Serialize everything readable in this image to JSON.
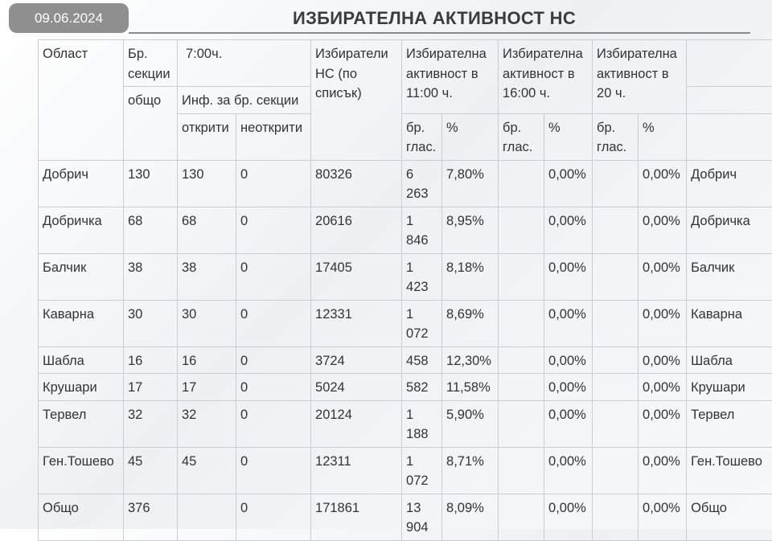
{
  "date": "09.06.2024",
  "title": "ИЗБИРАТЕЛНА АКТИВНОСТ НС",
  "headers": {
    "region": "Област",
    "sections": "Бр. секции",
    "time_7": "7:00ч.",
    "voters": "Избиратели НС (по списък)",
    "turnout_11": "Избирателна активност в 11:00 ч.",
    "turnout_16": "Избирателна активност в 16:00 ч.",
    "turnout_20": "Избирателна активност в 20 ч.",
    "total": "общо",
    "info_sections": "Инф. за бр. секции",
    "opened": "открити",
    "not_opened": "неоткрити",
    "votes_count": "бр. глас.",
    "percent": "%"
  },
  "rows": [
    {
      "region": "Добрич",
      "total": "130",
      "opened": "130",
      "not_opened": "0",
      "voters": "80326",
      "votes_11": "6 263",
      "pct_11": "7,80%",
      "votes_16": "",
      "pct_16": "0,00%",
      "votes_20": "",
      "pct_20": "0,00%",
      "region_right": "Добрич"
    },
    {
      "region": "Добричка",
      "total": "68",
      "opened": "68",
      "not_opened": "0",
      "voters": "20616",
      "votes_11": "1 846",
      "pct_11": "8,95%",
      "votes_16": "",
      "pct_16": "0,00%",
      "votes_20": "",
      "pct_20": "0,00%",
      "region_right": "Добричка"
    },
    {
      "region": "Балчик",
      "total": "38",
      "opened": "38",
      "not_opened": "0",
      "voters": "17405",
      "votes_11": "1 423",
      "pct_11": "8,18%",
      "votes_16": "",
      "pct_16": "0,00%",
      "votes_20": "",
      "pct_20": "0,00%",
      "region_right": "Балчик"
    },
    {
      "region": "Каварна",
      "total": "30",
      "opened": "30",
      "not_opened": "0",
      "voters": "12331",
      "votes_11": "1 072",
      "pct_11": "8,69%",
      "votes_16": "",
      "pct_16": "0,00%",
      "votes_20": "",
      "pct_20": "0,00%",
      "region_right": "Каварна"
    },
    {
      "region": "Шабла",
      "total": "16",
      "opened": "16",
      "not_opened": "0",
      "voters": "3724",
      "votes_11": "458",
      "pct_11": "12,30%",
      "votes_16": "",
      "pct_16": "0,00%",
      "votes_20": "",
      "pct_20": "0,00%",
      "region_right": "Шабла"
    },
    {
      "region": "Крушари",
      "total": "17",
      "opened": "17",
      "not_opened": "0",
      "voters": "5024",
      "votes_11": "582",
      "pct_11": "11,58%",
      "votes_16": "",
      "pct_16": "0,00%",
      "votes_20": "",
      "pct_20": "0,00%",
      "region_right": "Крушари"
    },
    {
      "region": "Тервел",
      "total": "32",
      "opened": "32",
      "not_opened": "0",
      "voters": "20124",
      "votes_11": "1 188",
      "pct_11": "5,90%",
      "votes_16": "",
      "pct_16": "0,00%",
      "votes_20": "",
      "pct_20": "0,00%",
      "region_right": "Тервел"
    },
    {
      "region": "Ген.Тошево",
      "total": "45",
      "opened": "45",
      "not_opened": "0",
      "voters": "12311",
      "votes_11": "1 072",
      "pct_11": "8,71%",
      "votes_16": "",
      "pct_16": "0,00%",
      "votes_20": "",
      "pct_20": "0,00%",
      "region_right": "Ген.Тошево"
    },
    {
      "region": "Общо",
      "total": "376",
      "opened": "",
      "not_opened": "0",
      "voters": "171861",
      "votes_11": "13 904",
      "pct_11": "8,09%",
      "votes_16": "",
      "pct_16": "0,00%",
      "votes_20": "",
      "pct_20": "0,00%",
      "region_right": "Общо"
    }
  ]
}
